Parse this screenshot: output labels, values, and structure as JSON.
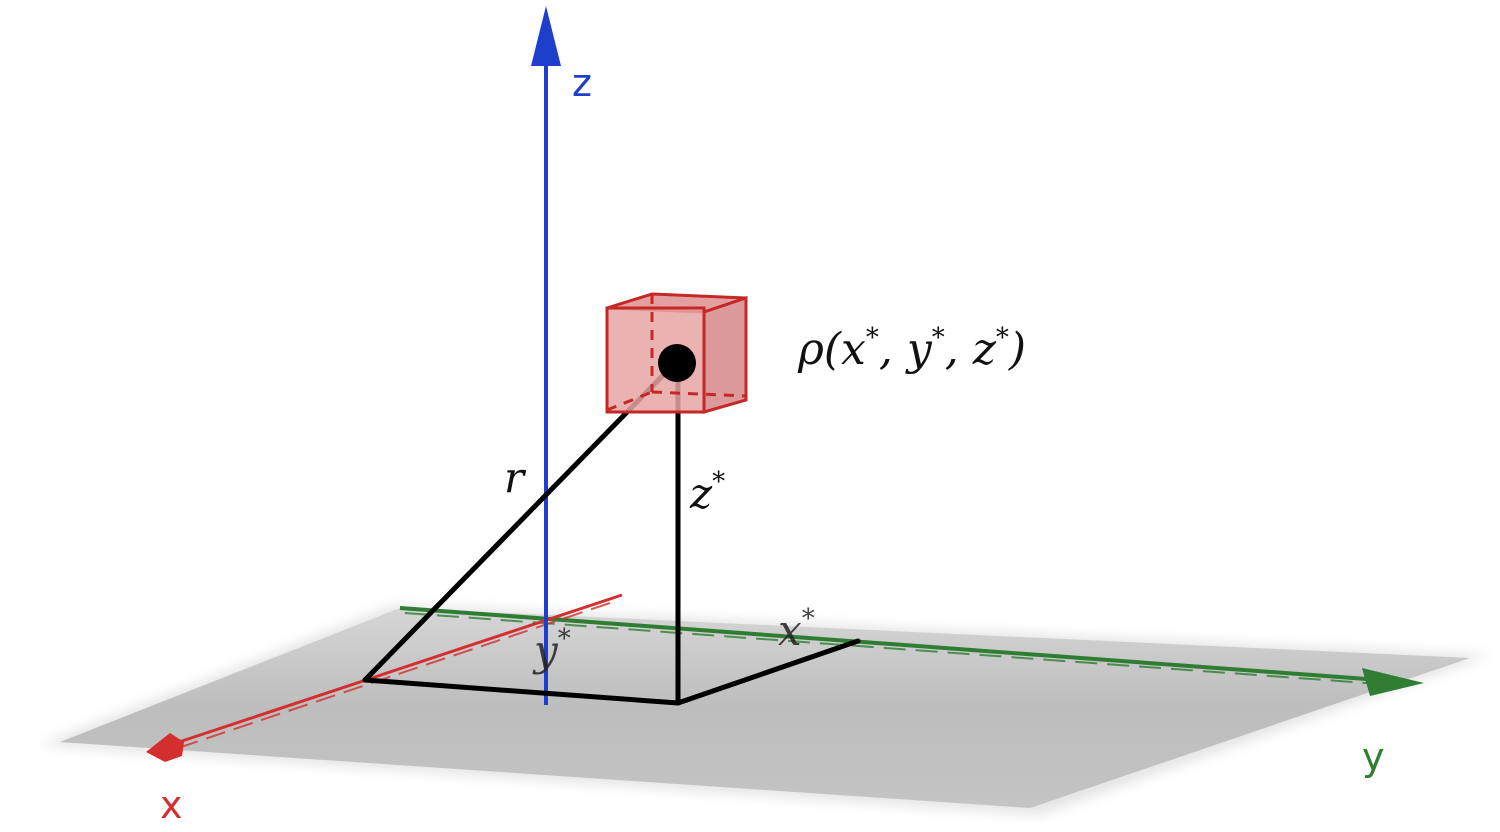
{
  "axes": {
    "x": {
      "label": "x",
      "color": "#d32f2f"
    },
    "y": {
      "label": "y",
      "color": "#2e7d32"
    },
    "z": {
      "label": "z",
      "color": "#1e3fcc"
    }
  },
  "point": {
    "density_label": {
      "prefix": "ρ(",
      "x": "x",
      "sep1": ", ",
      "y": "y",
      "sep2": ", ",
      "z": "z",
      "suffix": ")",
      "star": "*"
    },
    "r_label": "r",
    "z_label": {
      "base": "z",
      "star": "*"
    },
    "x_label": {
      "base": "x",
      "star": "*"
    },
    "y_label": {
      "base": "y",
      "star": "*"
    }
  },
  "colors": {
    "plane": "#b9b9b9",
    "cube_fill": "#e8a4a4",
    "cube_stroke": "#c62828",
    "lines": "#000000"
  }
}
